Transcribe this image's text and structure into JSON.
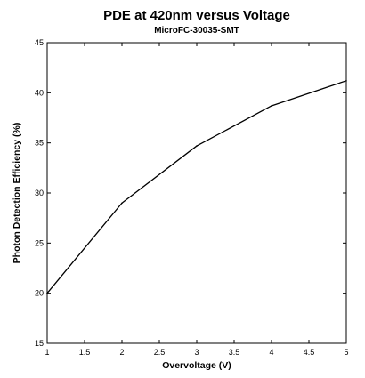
{
  "chart_data": {
    "type": "line",
    "title": "PDE at 420nm versus Voltage",
    "subtitle": "MicroFC-30035-SMT",
    "xlabel": "Overvoltage (V)",
    "ylabel": "Photon Detection Efficiency (%)",
    "xlim": [
      1,
      5
    ],
    "ylim": [
      15,
      45
    ],
    "grid": false,
    "x_ticks": [
      "1",
      "1.5",
      "2",
      "2.5",
      "3",
      "3.5",
      "4",
      "4.5",
      "5"
    ],
    "y_ticks": [
      "15",
      "20",
      "25",
      "30",
      "35",
      "40",
      "45"
    ],
    "series": [
      {
        "x": [
          1,
          2,
          3,
          4,
          5
        ],
        "y": [
          20,
          29,
          34.7,
          38.7,
          41.2
        ],
        "color": "#000000"
      }
    ]
  }
}
